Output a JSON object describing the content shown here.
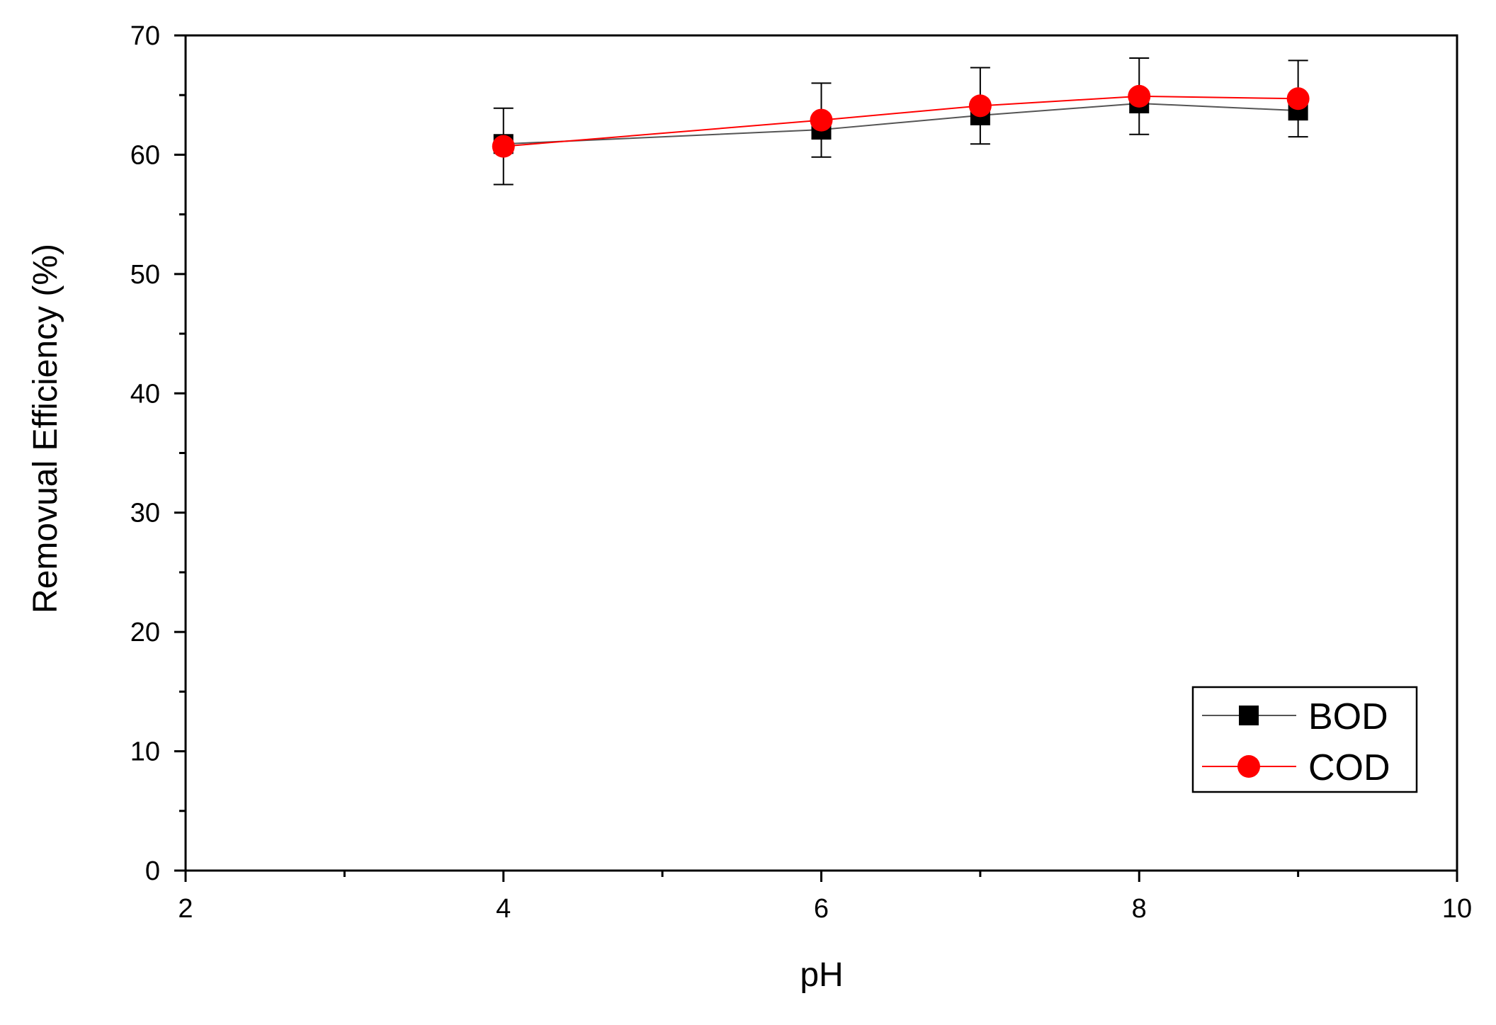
{
  "chart_data": {
    "type": "line",
    "title": "",
    "xlabel": "pH",
    "ylabel": "Removual Efficiency (%)",
    "xlim": [
      2,
      10
    ],
    "ylim": [
      0,
      70
    ],
    "xticks": [
      2,
      4,
      6,
      8,
      10
    ],
    "xtick_labels": [
      "2",
      "4",
      "6",
      "8",
      "10"
    ],
    "x_minor_ticks": [
      3,
      5,
      7,
      9
    ],
    "yticks": [
      0,
      10,
      20,
      30,
      40,
      50,
      60,
      70
    ],
    "ytick_labels": [
      "0",
      "10",
      "20",
      "30",
      "40",
      "50",
      "60",
      "70"
    ],
    "y_minor_ticks": [
      5,
      15,
      25,
      35,
      45,
      55,
      65
    ],
    "grid": false,
    "legend_position": "bottom-right",
    "series": [
      {
        "name": "BOD",
        "marker": "square",
        "color": "#000000",
        "line_color": "#555555",
        "x": [
          4,
          6,
          7,
          8,
          9
        ],
        "y": [
          60.9,
          62.1,
          63.3,
          64.3,
          63.7
        ],
        "error": [
          0,
          0,
          0,
          0,
          0
        ]
      },
      {
        "name": "COD",
        "marker": "circle",
        "color": "#ff0000",
        "line_color": "#ff0000",
        "x": [
          4,
          6,
          7,
          8,
          9
        ],
        "y": [
          60.7,
          62.9,
          64.1,
          64.9,
          64.7
        ],
        "error": [
          3.2,
          3.1,
          3.2,
          3.2,
          3.2
        ]
      }
    ]
  }
}
